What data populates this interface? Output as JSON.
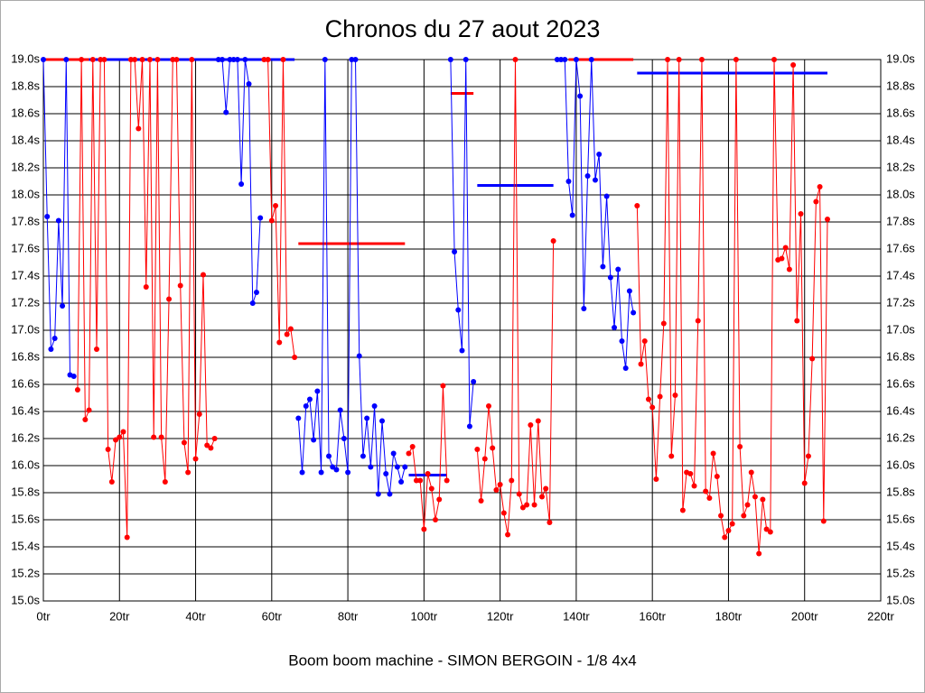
{
  "chart_data": {
    "type": "line",
    "title": "Chronos du 27 aout 2023",
    "x_label": "Boom boom machine - SIMON BERGOIN - 1/8 4x4",
    "xlim": [
      0,
      220
    ],
    "ylim": [
      15.0,
      19.0
    ],
    "xticks": [
      {
        "value": 0,
        "label": "0tr"
      },
      {
        "value": 20,
        "label": "20tr"
      },
      {
        "value": 40,
        "label": "40tr"
      },
      {
        "value": 60,
        "label": "60tr"
      },
      {
        "value": 80,
        "label": "80tr"
      },
      {
        "value": 100,
        "label": "100tr"
      },
      {
        "value": 120,
        "label": "120tr"
      },
      {
        "value": 140,
        "label": "140tr"
      },
      {
        "value": 160,
        "label": "160tr"
      },
      {
        "value": 180,
        "label": "180tr"
      },
      {
        "value": 200,
        "label": "200tr"
      },
      {
        "value": 220,
        "label": "220tr"
      }
    ],
    "yticks": [
      {
        "value": 15.0,
        "label": "15.0s"
      },
      {
        "value": 15.2,
        "label": "15.2s"
      },
      {
        "value": 15.4,
        "label": "15.4s"
      },
      {
        "value": 15.6,
        "label": "15.6s"
      },
      {
        "value": 15.8,
        "label": "15.8s"
      },
      {
        "value": 16.0,
        "label": "16.0s"
      },
      {
        "value": 16.2,
        "label": "16.2s"
      },
      {
        "value": 16.4,
        "label": "16.4s"
      },
      {
        "value": 16.6,
        "label": "16.6s"
      },
      {
        "value": 16.8,
        "label": "16.8s"
      },
      {
        "value": 17.0,
        "label": "17.0s"
      },
      {
        "value": 17.2,
        "label": "17.2s"
      },
      {
        "value": 17.4,
        "label": "17.4s"
      },
      {
        "value": 17.6,
        "label": "17.6s"
      },
      {
        "value": 17.8,
        "label": "17.8s"
      },
      {
        "value": 18.0,
        "label": "18.0s"
      },
      {
        "value": 18.2,
        "label": "18.2s"
      },
      {
        "value": 18.4,
        "label": "18.4s"
      },
      {
        "value": 18.6,
        "label": "18.6s"
      },
      {
        "value": 18.8,
        "label": "18.8s"
      },
      {
        "value": 19.0,
        "label": "19.0s"
      }
    ],
    "grid": true,
    "series": [
      {
        "color": "#0000ff",
        "x": [
          0,
          1,
          2,
          3,
          4,
          5,
          6,
          7,
          8,
          null,
          46,
          47,
          48,
          49,
          50,
          51,
          52,
          53,
          54,
          55,
          56,
          57,
          null,
          67,
          68,
          69,
          70,
          71,
          72,
          73,
          74,
          75,
          76,
          77,
          78,
          79,
          80,
          81,
          82,
          83,
          84,
          85,
          86,
          87,
          88,
          89,
          90,
          91,
          92,
          93,
          94,
          95,
          null,
          107,
          108,
          109,
          110,
          111,
          112,
          113,
          null,
          135,
          136,
          137,
          138,
          139,
          140,
          141,
          142,
          143,
          144,
          145,
          146,
          147,
          148,
          149,
          150,
          151,
          152,
          153,
          154,
          155
        ],
        "values": [
          19.0,
          17.84,
          16.86,
          16.94,
          17.81,
          17.18,
          19.0,
          16.67,
          16.66,
          null,
          19.0,
          19.0,
          18.61,
          19.0,
          19.0,
          19.0,
          18.08,
          19.0,
          18.82,
          17.2,
          17.28,
          17.83,
          null,
          16.35,
          15.95,
          16.44,
          16.49,
          16.19,
          16.55,
          15.95,
          19.0,
          16.07,
          15.99,
          15.97,
          16.41,
          16.2,
          15.95,
          19.0,
          19.0,
          16.81,
          16.07,
          16.35,
          15.99,
          16.44,
          15.79,
          16.33,
          15.94,
          15.79,
          16.09,
          15.99,
          15.88,
          15.99,
          null,
          19.0,
          17.58,
          17.15,
          16.85,
          19.0,
          16.29,
          16.62,
          null,
          19.0,
          19.0,
          19.0,
          18.1,
          17.85,
          19.0,
          18.73,
          17.16,
          18.14,
          19.0,
          18.11,
          18.3,
          17.47,
          17.99,
          17.39,
          17.02,
          17.45,
          16.92,
          16.72,
          17.29,
          17.13
        ]
      },
      {
        "color": "#ff0000",
        "x": [
          9,
          10,
          11,
          12,
          13,
          14,
          15,
          16,
          17,
          18,
          19,
          20,
          21,
          22,
          23,
          24,
          25,
          26,
          27,
          28,
          29,
          30,
          31,
          32,
          33,
          34,
          35,
          36,
          37,
          38,
          39,
          40,
          41,
          42,
          43,
          44,
          45,
          null,
          58,
          59,
          60,
          61,
          62,
          63,
          64,
          65,
          66,
          null,
          96,
          97,
          98,
          99,
          100,
          101,
          102,
          103,
          104,
          105,
          106,
          null,
          114,
          115,
          116,
          117,
          118,
          119,
          120,
          121,
          122,
          123,
          124,
          125,
          126,
          127,
          128,
          129,
          130,
          131,
          132,
          133,
          134,
          null,
          156,
          157,
          158,
          159,
          160,
          161,
          162,
          163,
          164,
          165,
          166,
          167,
          168,
          169,
          170,
          171,
          172,
          173,
          174,
          175,
          176,
          177,
          178,
          179,
          180,
          181,
          182,
          183,
          184,
          185,
          186,
          187,
          188,
          189,
          190,
          191,
          192,
          193,
          194,
          195,
          196,
          197,
          198,
          199,
          200,
          201,
          202,
          203,
          204,
          205,
          206
        ],
        "values": [
          16.56,
          19.0,
          16.34,
          16.41,
          19.0,
          16.86,
          19.0,
          19.0,
          16.12,
          15.88,
          16.19,
          16.21,
          16.25,
          15.47,
          19.0,
          19.0,
          18.49,
          19.0,
          17.32,
          19.0,
          16.21,
          19.0,
          16.21,
          15.88,
          17.23,
          19.0,
          19.0,
          17.33,
          16.17,
          15.95,
          19.0,
          16.05,
          16.38,
          17.41,
          16.15,
          16.13,
          16.2,
          null,
          19.0,
          19.0,
          17.81,
          17.92,
          16.91,
          19.0,
          16.97,
          17.01,
          16.8,
          null,
          16.09,
          16.14,
          15.89,
          15.89,
          15.53,
          15.94,
          15.83,
          15.6,
          15.75,
          16.59,
          15.89,
          null,
          16.12,
          15.74,
          16.05,
          16.44,
          16.13,
          15.82,
          15.86,
          15.65,
          15.49,
          15.89,
          19.0,
          15.79,
          15.69,
          15.71,
          16.3,
          15.71,
          16.33,
          15.77,
          15.83,
          15.58,
          17.66,
          null,
          17.92,
          16.75,
          16.92,
          16.49,
          16.43,
          15.9,
          16.51,
          17.05,
          19.0,
          16.07,
          16.52,
          19.0,
          15.67,
          15.95,
          15.94,
          15.85,
          17.07,
          19.0,
          15.81,
          15.76,
          16.09,
          15.92,
          15.63,
          15.47,
          15.52,
          15.57,
          19.0,
          16.14,
          15.63,
          15.71,
          15.95,
          15.77,
          15.35,
          15.75,
          15.53,
          15.51,
          19.0,
          17.52,
          17.53,
          17.61,
          17.45,
          18.96,
          17.07,
          17.86,
          15.87,
          16.07,
          16.79,
          17.95,
          18.06,
          15.59,
          17.82
        ]
      }
    ],
    "average_lines": [
      {
        "color": "#ff0000",
        "x": [
          0,
          12
        ],
        "y": 19.0
      },
      {
        "color": "#0000ff",
        "x": [
          12,
          66
        ],
        "y": 19.0
      },
      {
        "color": "#ff0000",
        "x": [
          67,
          95
        ],
        "y": 17.64
      },
      {
        "color": "#0000ff",
        "x": [
          96,
          106
        ],
        "y": 15.93
      },
      {
        "color": "#ff0000",
        "x": [
          107,
          113
        ],
        "y": 18.75
      },
      {
        "color": "#0000ff",
        "x": [
          114,
          134
        ],
        "y": 18.07
      },
      {
        "color": "#ff0000",
        "x": [
          138,
          155
        ],
        "y": 19.0
      },
      {
        "color": "#0000ff",
        "x": [
          156,
          206
        ],
        "y": 18.9
      }
    ]
  }
}
